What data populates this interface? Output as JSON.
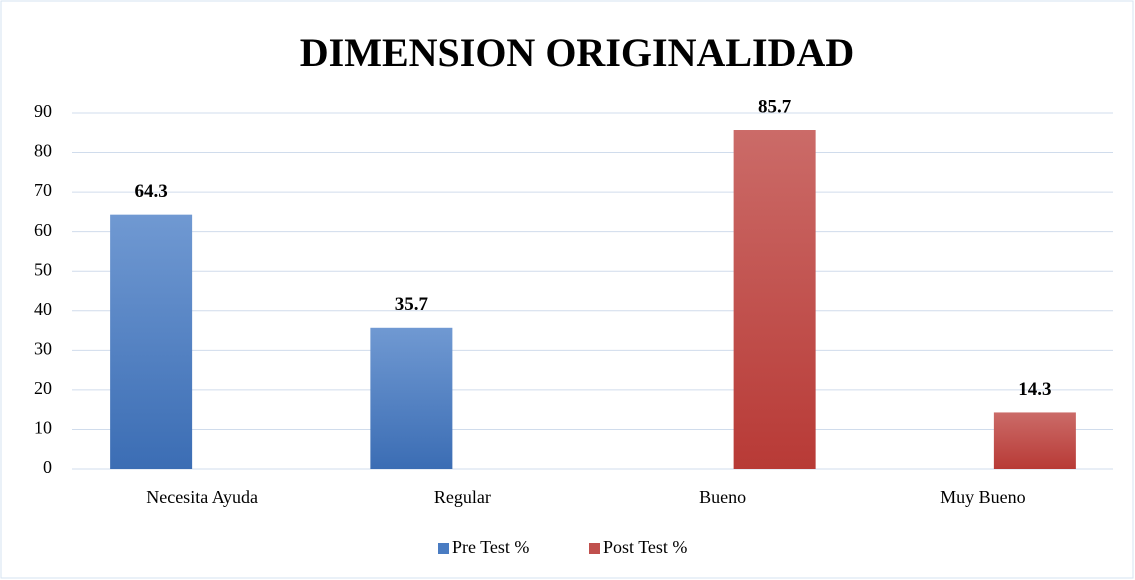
{
  "chart_data": {
    "type": "bar",
    "title": "DIMENSION  ORIGINALIDAD",
    "categories": [
      "Necesita Ayuda",
      "Regular",
      "Bueno",
      "Muy Bueno"
    ],
    "series": [
      {
        "name": "Pre Test %",
        "color": "#4a7cc2",
        "values": [
          64.3,
          35.7,
          null,
          null
        ]
      },
      {
        "name": "Post Test %",
        "color": "#c0504d",
        "values": [
          null,
          null,
          85.7,
          14.3
        ]
      }
    ],
    "ylim": [
      0,
      90
    ],
    "yticks": [
      0,
      10,
      20,
      30,
      40,
      50,
      60,
      70,
      80,
      90
    ],
    "grid": true,
    "legend": "bottom"
  }
}
